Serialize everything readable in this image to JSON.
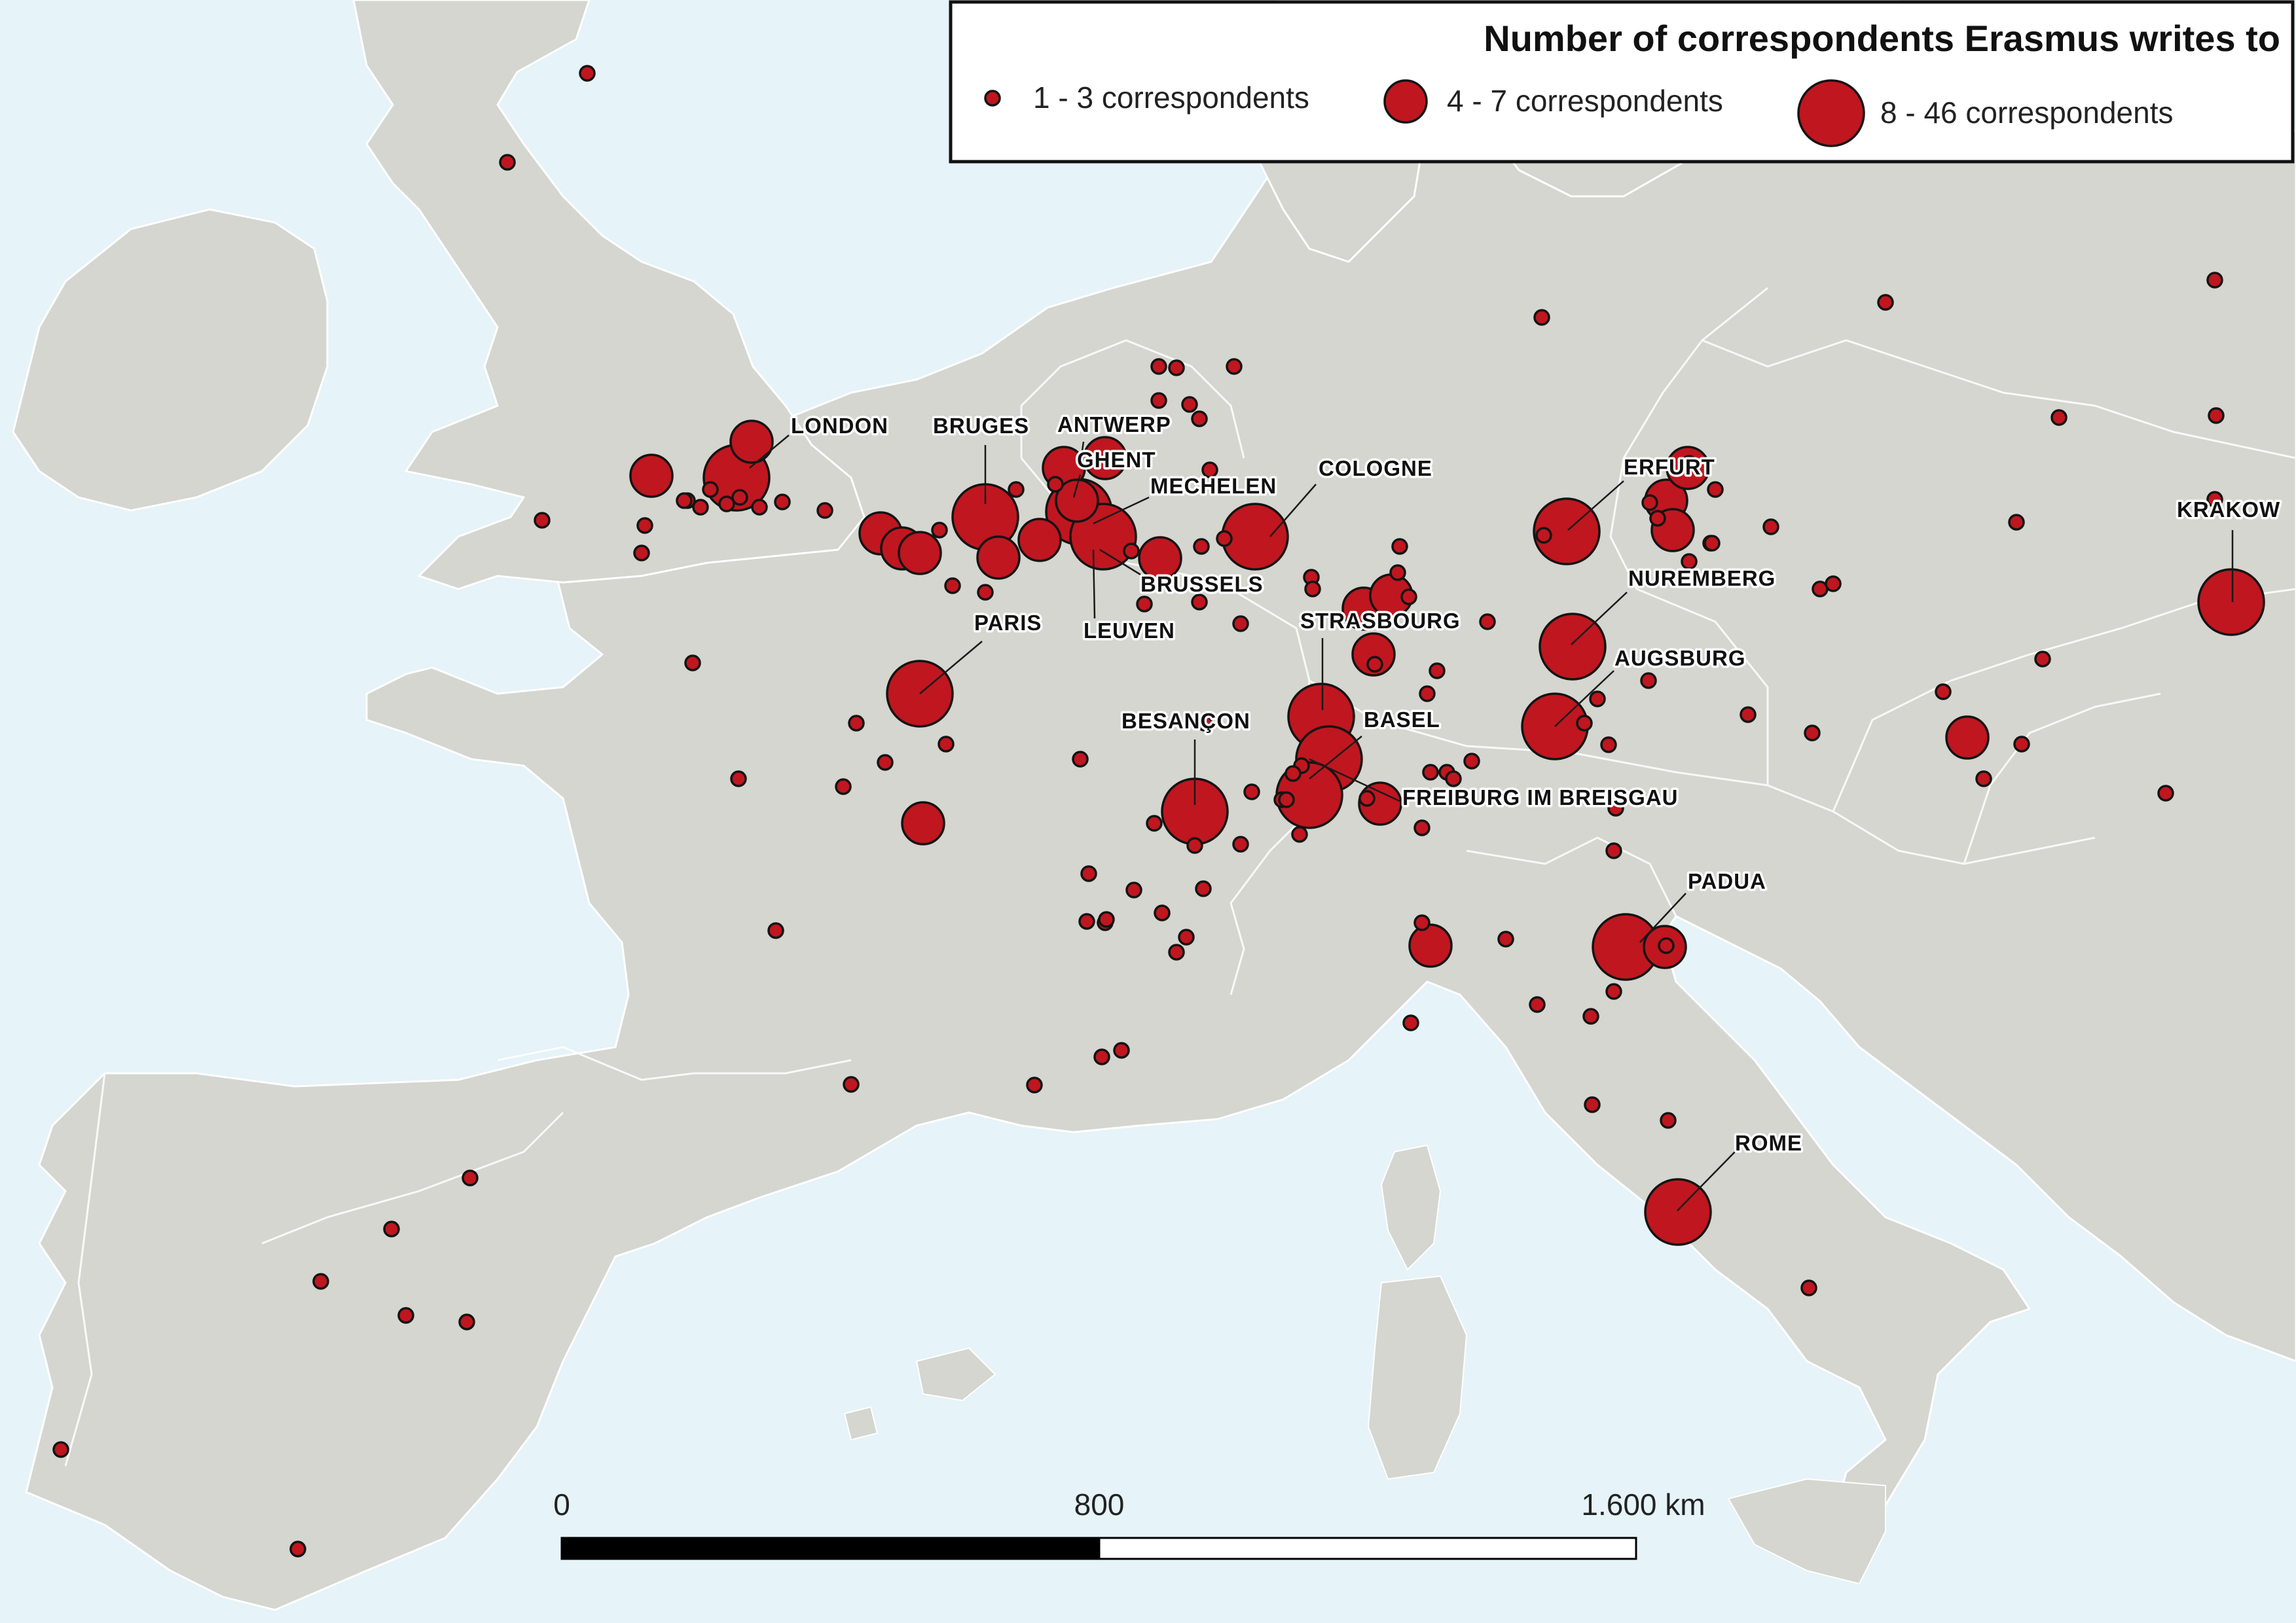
{
  "legend": {
    "title": "Number of correspondents Erasmus writes to",
    "classes": [
      {
        "label": "1 - 3 correspondents",
        "min": 1,
        "max": 3
      },
      {
        "label": "4 - 7 correspondents",
        "min": 4,
        "max": 7
      },
      {
        "label": "8 - 46 correspondents",
        "min": 8,
        "max": 46
      }
    ]
  },
  "scalebar": {
    "labels": [
      "0",
      "800",
      "1.600 km"
    ]
  },
  "colors": {
    "sea": "#e6f3f8",
    "land": "#d4d6cf",
    "symbol_fill": "#c0161f",
    "symbol_stroke": "#141414"
  },
  "cities": [
    {
      "name": "LONDON"
    },
    {
      "name": "BRUGES"
    },
    {
      "name": "ANTWERP"
    },
    {
      "name": "GHENT"
    },
    {
      "name": "MECHELEN"
    },
    {
      "name": "COLOGNE"
    },
    {
      "name": "BRUSSELS"
    },
    {
      "name": "LEUVEN"
    },
    {
      "name": "PARIS"
    },
    {
      "name": "STRASBOURG"
    },
    {
      "name": "BESANÇON"
    },
    {
      "name": "BASEL"
    },
    {
      "name": "FREIBURG IM BREISGAU"
    },
    {
      "name": "ERFURT"
    },
    {
      "name": "NUREMBERG"
    },
    {
      "name": "AUGSBURG"
    },
    {
      "name": "KRAKOW"
    },
    {
      "name": "PADUA"
    },
    {
      "name": "ROME"
    }
  ]
}
